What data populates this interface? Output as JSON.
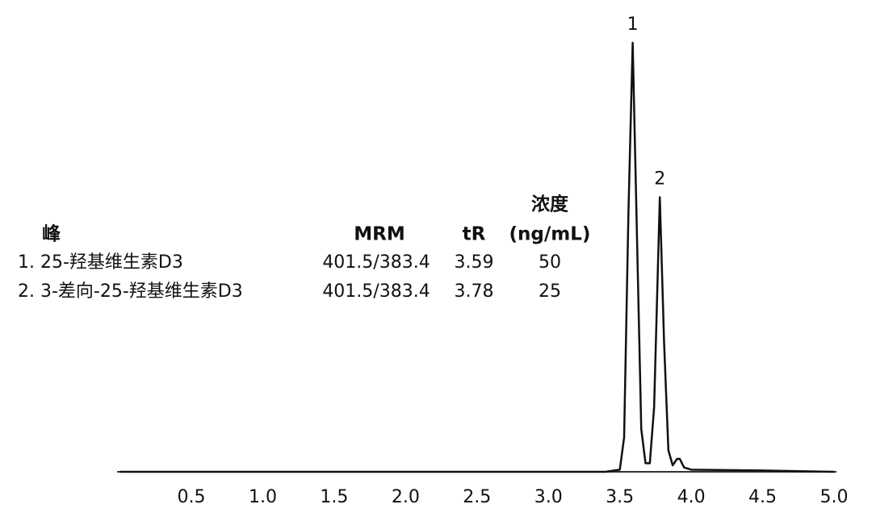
{
  "chart_data": {
    "type": "line",
    "x": [
      0,
      3.4,
      3.5,
      3.53,
      3.56,
      3.59,
      3.62,
      3.65,
      3.68,
      3.71,
      3.74,
      3.78,
      3.81,
      3.84,
      3.87,
      3.9,
      3.92,
      3.95,
      4.0,
      4.5,
      5.0
    ],
    "series": [
      {
        "color": "#111111",
        "values": [
          0,
          0,
          0.5,
          8,
          60,
          100,
          55,
          10,
          2,
          2,
          15,
          64,
          30,
          5,
          1.5,
          3,
          3,
          1,
          0.5,
          0.3,
          0
        ]
      }
    ],
    "xlim": [
      0,
      5.0
    ],
    "xticks": [
      {
        "value": 0.5,
        "label": "0.5"
      },
      {
        "value": 1,
        "label": "1.0"
      },
      {
        "value": 1.5,
        "label": "1.5"
      },
      {
        "value": 2,
        "label": "2.0"
      },
      {
        "value": 2.5,
        "label": "2.5"
      },
      {
        "value": 3,
        "label": "3.0"
      },
      {
        "value": 3.5,
        "label": "3.5"
      },
      {
        "value": 4,
        "label": "4.0"
      },
      {
        "value": 4.5,
        "label": "4.5"
      },
      {
        "value": 5,
        "label": "5.0"
      }
    ],
    "ylim": [
      0,
      100
    ],
    "grid": false,
    "peak_labels": [
      {
        "text": "1",
        "x": 3.59
      },
      {
        "text": "2",
        "x": 3.78
      }
    ],
    "table": {
      "headers": [
        [
          "峰"
        ],
        [
          "MRM"
        ],
        [
          "tR"
        ],
        [
          "浓度",
          "(ng/mL)"
        ]
      ],
      "rows": [
        [
          "1.",
          "25-羟基维生素D3",
          "401.5/383.4",
          "3.59",
          "50"
        ],
        [
          "2.",
          "3-差向-25-羟基维生素D3",
          "401.5/383.4",
          "3.78",
          "25"
        ]
      ]
    }
  }
}
